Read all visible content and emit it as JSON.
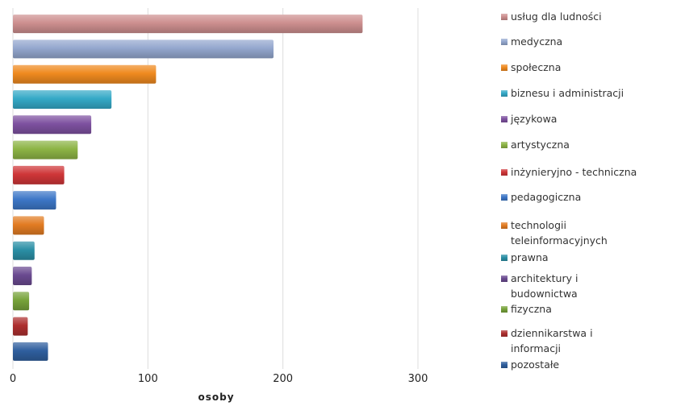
{
  "chart_data": {
    "type": "bar",
    "orientation": "horizontal",
    "xlabel": "osoby",
    "xlim": [
      0,
      300
    ],
    "xticks": [
      0,
      100,
      200,
      300
    ],
    "grid": true,
    "legend_position": "right",
    "categories": [
      "usług dla ludności",
      "medyczna",
      "społeczna",
      "biznesu i administracji",
      "językowa",
      "artystyczna",
      "inżynieryjno - techniczna",
      "pedagogiczna",
      "technologii teleinformacyjnych",
      "prawna",
      "architektury i budownictwa",
      "fizyczna",
      "dziennikarstwa i informacji",
      "pozostałe"
    ],
    "legend_lines": [
      [
        "usług dla ludności"
      ],
      [
        "medyczna"
      ],
      [
        "społeczna"
      ],
      [
        "biznesu i administracji"
      ],
      [
        "językowa"
      ],
      [
        "artystyczna"
      ],
      [
        "inżynieryjno - techniczna"
      ],
      [
        "pedagogiczna"
      ],
      [
        "technologii",
        "teleinformacyjnych"
      ],
      [
        "prawna"
      ],
      [
        "architektury i",
        "budownictwa"
      ],
      [
        "fizyczna"
      ],
      [
        "dziennikarstwa i",
        "informacji"
      ],
      [
        "pozostałe"
      ]
    ],
    "values": [
      259,
      193,
      106,
      73,
      58,
      48,
      38,
      32,
      23,
      16,
      14,
      12,
      11,
      26
    ],
    "colors": [
      "#cd8f8f",
      "#94a7ce",
      "#ef8a1f",
      "#35a9c7",
      "#7e51a0",
      "#8db445",
      "#cf3638",
      "#3d77c7",
      "#e27c23",
      "#2b8fa5",
      "#6a4a90",
      "#77a33a",
      "#ad2f2f",
      "#2f5f9e"
    ]
  }
}
